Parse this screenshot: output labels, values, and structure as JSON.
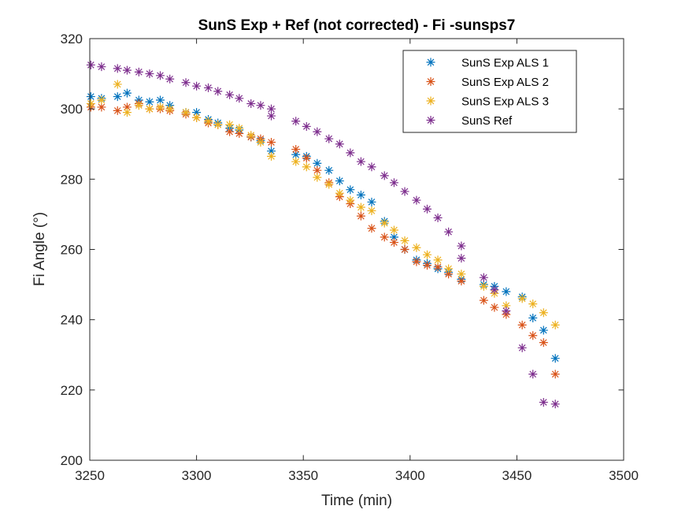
{
  "chart_data": {
    "type": "scatter",
    "title": "SunS Exp + Ref  (not corrected) - Fi -sunsps7",
    "xlabel": "Time (min)",
    "ylabel": "Fi Angle (°)",
    "xlim": [
      3250,
      3500
    ],
    "ylim": [
      200,
      320
    ],
    "xticks": [
      3250,
      3300,
      3350,
      3400,
      3450,
      3500
    ],
    "yticks": [
      200,
      220,
      240,
      260,
      280,
      300,
      320
    ],
    "xtick_labels": [
      "3250",
      "3300",
      "3350",
      "3400",
      "3450",
      "3500"
    ],
    "ytick_labels": [
      "200",
      "220",
      "240",
      "260",
      "280",
      "300",
      "320"
    ],
    "grid": false,
    "legend_position": "top-right",
    "marker": "asterisk",
    "series": [
      {
        "name": "SunS Exp ALS 1",
        "color": "#0072BD",
        "x": [
          3250.5,
          3255.5,
          3263,
          3267.5,
          3273,
          3278,
          3283,
          3287.5,
          3295,
          3300,
          3305.5,
          3310,
          3315.5,
          3320,
          3325.5,
          3330,
          3335,
          3346.5,
          3351.5,
          3356.5,
          3362,
          3367,
          3372,
          3377,
          3382,
          3388,
          3392.5,
          3397.5,
          3403,
          3408,
          3413,
          3418,
          3424,
          3434.5,
          3439.5,
          3445,
          3452.5,
          3457.5,
          3462.5,
          3468
        ],
        "y": [
          303.5,
          303,
          303.5,
          304.5,
          302.5,
          302,
          302.5,
          301,
          299,
          299,
          297,
          296,
          294.5,
          294,
          292,
          291,
          288,
          287,
          286.5,
          284.5,
          282.5,
          279.5,
          277,
          275.5,
          273.5,
          268,
          263.5,
          260,
          257,
          256,
          254.5,
          253.5,
          251.5,
          250,
          249.5,
          248,
          246.5,
          240.5,
          237,
          229
        ]
      },
      {
        "name": "SunS Exp ALS 2",
        "color": "#D95319",
        "x": [
          3250.5,
          3255.5,
          3263,
          3267.5,
          3273,
          3278,
          3283,
          3287.5,
          3295,
          3300,
          3305.5,
          3310,
          3315.5,
          3320,
          3325.5,
          3330,
          3335,
          3346.5,
          3351.5,
          3356.5,
          3362,
          3367,
          3372,
          3377,
          3382,
          3388,
          3392.5,
          3397.5,
          3403,
          3408,
          3413,
          3418,
          3424,
          3434.5,
          3439.5,
          3445,
          3452.5,
          3457.5,
          3462.5,
          3468
        ],
        "y": [
          300.5,
          300.5,
          299.5,
          300.5,
          301.5,
          300,
          300,
          299.5,
          298.5,
          297.5,
          296,
          295.5,
          293.5,
          293,
          292,
          291.5,
          290.5,
          288.5,
          286,
          282.5,
          279,
          275,
          273,
          269.5,
          266,
          263.5,
          262,
          260,
          256.5,
          255.5,
          255,
          253,
          251,
          245.5,
          243.5,
          241.5,
          238.5,
          235.5,
          233.5,
          224.5
        ]
      },
      {
        "name": "SunS Exp ALS 3",
        "color": "#EDB120",
        "x": [
          3250.5,
          3255.5,
          3263,
          3267.5,
          3273,
          3278,
          3283,
          3287.5,
          3295,
          3300,
          3305.5,
          3310,
          3315.5,
          3320,
          3325.5,
          3330,
          3335,
          3346.5,
          3351.5,
          3356.5,
          3362,
          3367,
          3372,
          3377,
          3382,
          3388,
          3392.5,
          3397.5,
          3403,
          3408,
          3413,
          3418,
          3424,
          3434.5,
          3439.5,
          3445,
          3452.5,
          3457.5,
          3462.5,
          3468
        ],
        "y": [
          301.5,
          302.5,
          307,
          299,
          301,
          300,
          300.5,
          300,
          299,
          297.5,
          296.5,
          295.5,
          295.5,
          294.5,
          292.5,
          290.5,
          286.5,
          285,
          283.5,
          280.5,
          278.5,
          276,
          274,
          272,
          271,
          267.5,
          265.5,
          262.5,
          260.5,
          258.5,
          257,
          254.5,
          253,
          249.5,
          247.5,
          244,
          246,
          244.5,
          242,
          238.5
        ]
      },
      {
        "name": "SunS Ref",
        "color": "#7E2F8E",
        "x": [
          3250.5,
          3255.5,
          3263,
          3267.5,
          3273,
          3278,
          3283,
          3287.5,
          3295,
          3300,
          3305.5,
          3310,
          3315.5,
          3320,
          3325.5,
          3330,
          3335,
          3335,
          3346.5,
          3351.5,
          3356.5,
          3362,
          3367,
          3372,
          3377,
          3382,
          3388,
          3392.5,
          3397.5,
          3403,
          3408,
          3413,
          3418,
          3424,
          3424,
          3434.5,
          3439.5,
          3445,
          3452.5,
          3457.5,
          3462.5,
          3468
        ],
        "y": [
          312.5,
          312,
          311.5,
          311,
          310.5,
          310,
          309.5,
          308.5,
          307.5,
          306.5,
          306,
          305,
          304,
          303,
          301.5,
          301,
          300,
          298,
          296.5,
          295,
          293.5,
          291.5,
          290,
          287.5,
          285,
          283.5,
          281,
          279,
          276.5,
          274,
          271.5,
          269,
          265,
          261,
          257.5,
          252,
          248.5,
          242.5,
          232,
          224.5,
          216.5,
          216
        ]
      }
    ]
  }
}
